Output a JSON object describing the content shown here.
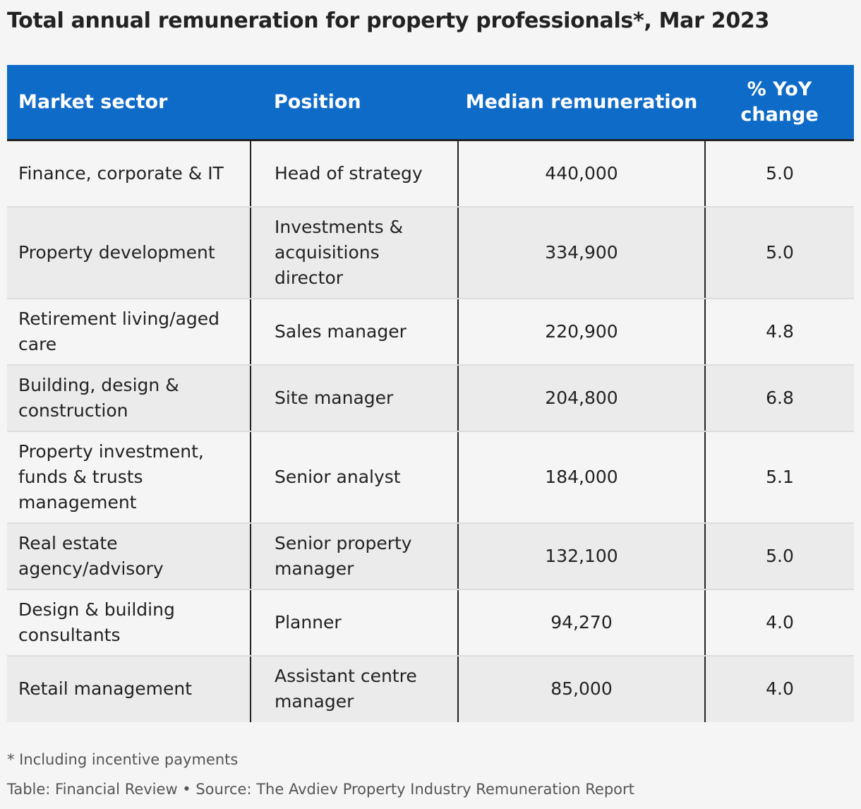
{
  "title": "Total annual remuneration for property professionals*, Mar 2023",
  "footnote": "* Including incentive payments",
  "source": "Table: Financial Review • Source: The Avdiev Property Industry Remuneration Report",
  "colors": {
    "header_background": "#0f6bc8",
    "header_text": "#ffffff",
    "row_light": "#f5f5f5",
    "row_dark": "#ebebeb",
    "column_divider": "#222222"
  },
  "chart_data": {
    "type": "table",
    "columns": [
      "Market sector",
      "Position",
      "Median remuneration",
      "% YoY change"
    ],
    "rows": [
      [
        "Finance, corporate & IT",
        "Head of strategy",
        "440,000",
        "5.0"
      ],
      [
        "Property development",
        "Investments & acquisitions director",
        "334,900",
        "5.0"
      ],
      [
        "Retirement living/aged care",
        "Sales manager",
        "220,900",
        "4.8"
      ],
      [
        "Building, design & construction",
        "Site manager",
        "204,800",
        "6.8"
      ],
      [
        "Property investment, funds & trusts management",
        "Senior analyst",
        "184,000",
        "5.1"
      ],
      [
        "Real estate agency/advisory",
        "Senior property manager",
        "132,100",
        "5.0"
      ],
      [
        "Design & building consultants",
        "Planner",
        "94,270",
        "4.0"
      ],
      [
        "Retail management",
        "Assistant centre manager",
        "85,000",
        "4.0"
      ]
    ]
  }
}
